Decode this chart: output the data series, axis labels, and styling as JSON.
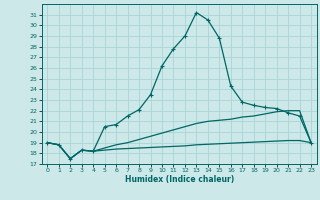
{
  "xlabel": "Humidex (Indice chaleur)",
  "bg_color": "#cce8e8",
  "grid_color": "#aad4d4",
  "line_color": "#006666",
  "ylim": [
    17,
    32
  ],
  "xlim": [
    -0.5,
    23.5
  ],
  "yticks": [
    17,
    18,
    19,
    20,
    21,
    22,
    23,
    24,
    25,
    26,
    27,
    28,
    29,
    30,
    31
  ],
  "xticks": [
    0,
    1,
    2,
    3,
    4,
    5,
    6,
    7,
    8,
    9,
    10,
    11,
    12,
    13,
    14,
    15,
    16,
    17,
    18,
    19,
    20,
    21,
    22,
    23
  ],
  "line1_x": [
    0,
    1,
    2,
    3,
    4,
    5,
    6,
    7,
    8,
    9,
    10,
    11,
    12,
    13,
    14,
    15,
    16,
    17,
    18,
    19,
    20,
    21,
    22,
    23
  ],
  "line1_y": [
    19.0,
    18.8,
    17.5,
    18.3,
    18.2,
    20.5,
    20.7,
    21.5,
    22.1,
    23.5,
    26.2,
    27.8,
    29.0,
    31.2,
    30.5,
    28.8,
    24.3,
    22.8,
    22.5,
    22.3,
    22.2,
    21.8,
    21.5,
    19.0
  ],
  "line2_x": [
    0,
    1,
    2,
    3,
    4,
    5,
    6,
    7,
    8,
    9,
    10,
    11,
    12,
    13,
    14,
    15,
    16,
    17,
    18,
    19,
    20,
    21,
    22,
    23
  ],
  "line2_y": [
    19.0,
    18.8,
    17.5,
    18.3,
    18.2,
    18.3,
    18.4,
    18.45,
    18.5,
    18.55,
    18.6,
    18.65,
    18.7,
    18.8,
    18.85,
    18.9,
    18.95,
    19.0,
    19.05,
    19.1,
    19.15,
    19.2,
    19.2,
    19.0
  ],
  "line3_x": [
    0,
    1,
    2,
    3,
    4,
    5,
    6,
    7,
    8,
    9,
    10,
    11,
    12,
    13,
    14,
    15,
    16,
    17,
    18,
    19,
    20,
    21,
    22,
    23
  ],
  "line3_y": [
    19.0,
    18.8,
    17.5,
    18.3,
    18.2,
    18.5,
    18.8,
    19.0,
    19.3,
    19.6,
    19.9,
    20.2,
    20.5,
    20.8,
    21.0,
    21.1,
    21.2,
    21.4,
    21.5,
    21.7,
    21.9,
    22.0,
    22.0,
    19.0
  ]
}
